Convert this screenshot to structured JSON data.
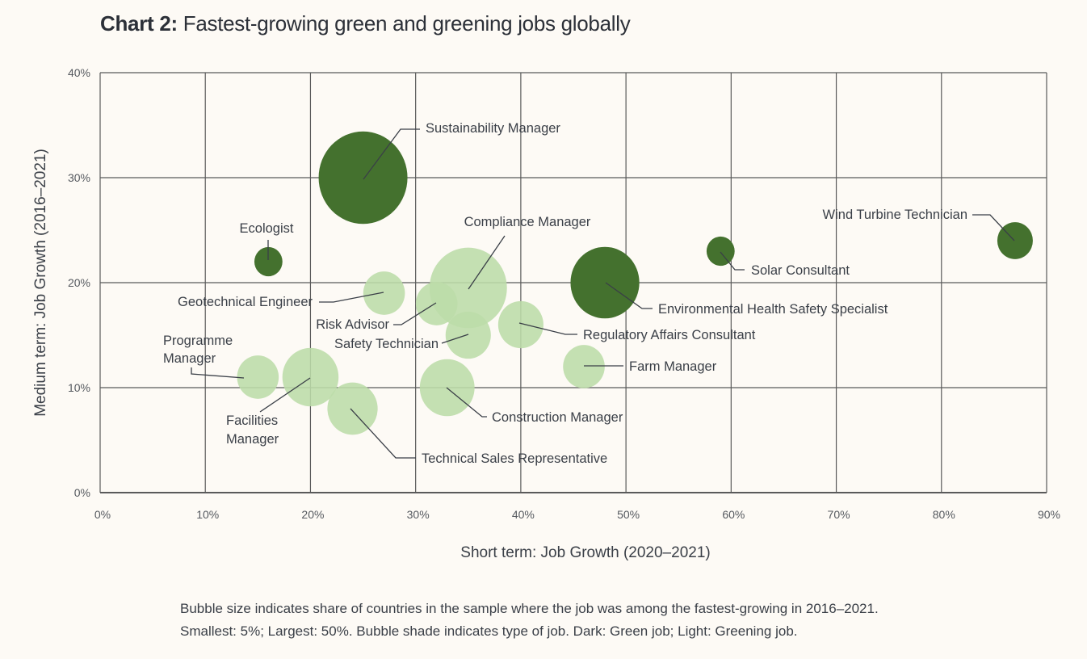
{
  "chart_data": {
    "type": "scatter",
    "subtype": "bubble",
    "title_prefix": "Chart 2:",
    "title": "Fastest-growing green and greening jobs globally",
    "xlabel": "Short term: Job Growth (2020–2021)",
    "ylabel": "Medium term: Job Growth (2016–2021)",
    "xlim": [
      0,
      90
    ],
    "ylim": [
      0,
      40
    ],
    "x_ticks": [
      "0%",
      "10%",
      "20%",
      "30%",
      "40%",
      "50%",
      "60%",
      "70%",
      "80%",
      "90%"
    ],
    "y_ticks": [
      "0%",
      "10%",
      "20%",
      "30%",
      "40%"
    ],
    "grid": true,
    "size_unit": "share of countries (%)",
    "colors": {
      "green_job": "#44712e",
      "greening_job": "#bcdca8",
      "background": "#fdfaf5",
      "grid": "#5a5a5a"
    },
    "points": [
      {
        "label": "Sustainability Manager",
        "x": 25,
        "y": 30,
        "size": 50,
        "type": "green"
      },
      {
        "label": "Ecologist",
        "x": 16,
        "y": 22,
        "size": 5,
        "type": "green"
      },
      {
        "label": "Wind Turbine Technician",
        "x": 87,
        "y": 24,
        "size": 8,
        "type": "green"
      },
      {
        "label": "Solar Consultant",
        "x": 59,
        "y": 23,
        "size": 5,
        "type": "green"
      },
      {
        "label": "Environmental Health Safety Specialist",
        "x": 48,
        "y": 20,
        "size": 30,
        "type": "green"
      },
      {
        "label": "Compliance Manager",
        "x": 35,
        "y": 19.5,
        "size": 38,
        "type": "greening"
      },
      {
        "label": "Geotechnical Engineer",
        "x": 27,
        "y": 19,
        "size": 11,
        "type": "greening"
      },
      {
        "label": "Risk Advisor",
        "x": 32,
        "y": 18,
        "size": 11,
        "type": "greening"
      },
      {
        "label": "Safety Technician",
        "x": 35,
        "y": 15,
        "size": 13,
        "type": "greening"
      },
      {
        "label": "Regulatory Affairs Consultant",
        "x": 40,
        "y": 16,
        "size": 13,
        "type": "greening"
      },
      {
        "label": "Farm Manager",
        "x": 46,
        "y": 12,
        "size": 11,
        "type": "greening"
      },
      {
        "label": "Programme Manager",
        "x": 15,
        "y": 11,
        "size": 11,
        "type": "greening"
      },
      {
        "label": "Facilities Manager",
        "x": 20,
        "y": 11,
        "size": 20,
        "type": "greening"
      },
      {
        "label": "Technical Sales Representative",
        "x": 24,
        "y": 8,
        "size": 16,
        "type": "greening"
      },
      {
        "label": "Construction Manager",
        "x": 33,
        "y": 10,
        "size": 19,
        "type": "greening"
      }
    ],
    "note_lines": [
      "Bubble size indicates share of countries in the sample where the job was among the fastest-growing in 2016–2021.",
      "Smallest: 5%; Largest: 50%. Bubble shade indicates type of job. Dark: Green job; Light: Greening job."
    ]
  }
}
